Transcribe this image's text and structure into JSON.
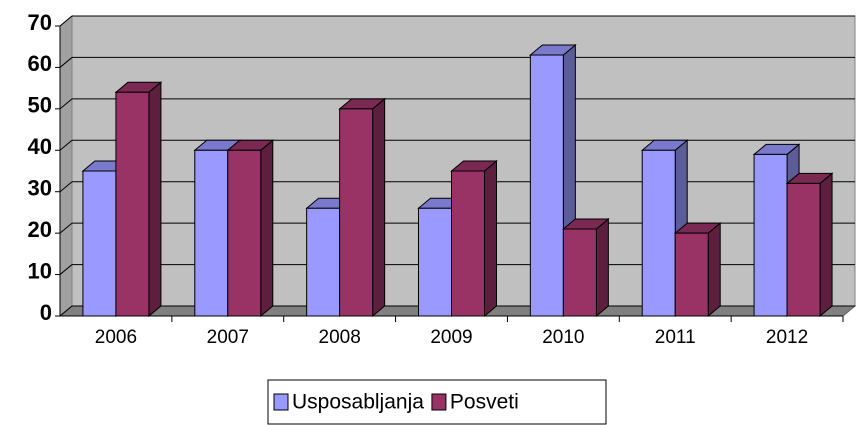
{
  "chart_data": {
    "type": "bar3d",
    "categories": [
      "2006",
      "2007",
      "2008",
      "2009",
      "2010",
      "2011",
      "2012"
    ],
    "series": [
      {
        "name": "Usposabljanja",
        "color": "#9999ff",
        "values": [
          35,
          40,
          26,
          26,
          63,
          40,
          39
        ]
      },
      {
        "name": "Posveti",
        "color": "#993366",
        "values": [
          54,
          40,
          50,
          35,
          21,
          20,
          32
        ]
      }
    ],
    "ylim": [
      0,
      70
    ],
    "yticks": [
      0,
      10,
      20,
      30,
      40,
      50,
      60,
      70
    ],
    "grid": true,
    "legend": "bottom"
  }
}
